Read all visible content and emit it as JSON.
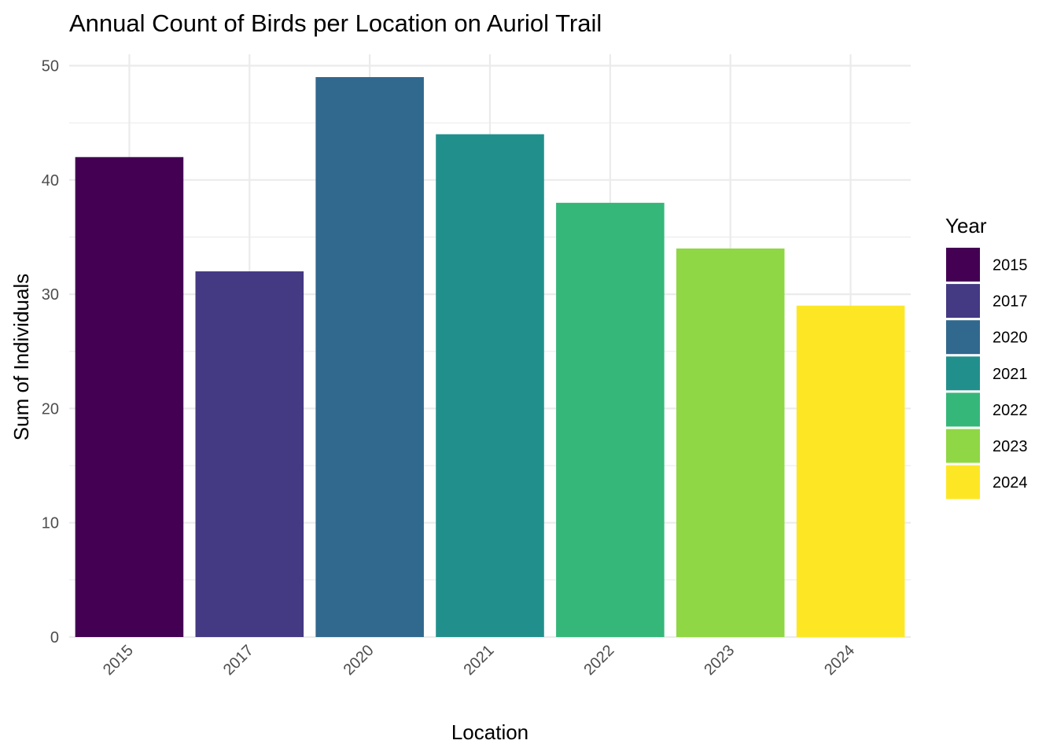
{
  "chart_data": {
    "type": "bar",
    "title": "Annual Count of Birds per Location on Auriol Trail",
    "xlabel": "Location",
    "ylabel": "Sum of Individuals",
    "categories": [
      "2015",
      "2017",
      "2020",
      "2021",
      "2022",
      "2023",
      "2024"
    ],
    "values": [
      42,
      32,
      49,
      44,
      38,
      34,
      29
    ],
    "colors": [
      "#440154",
      "#443983",
      "#31688E",
      "#21908C",
      "#35B779",
      "#8FD744",
      "#FDE725"
    ],
    "ylim": [
      0,
      51
    ],
    "yticks": [
      "0",
      "10",
      "20",
      "30",
      "40",
      "50"
    ],
    "grid": true,
    "legend": {
      "title": "Year",
      "position": "right",
      "items": [
        "2015",
        "2017",
        "2020",
        "2021",
        "2022",
        "2023",
        "2024"
      ]
    }
  }
}
